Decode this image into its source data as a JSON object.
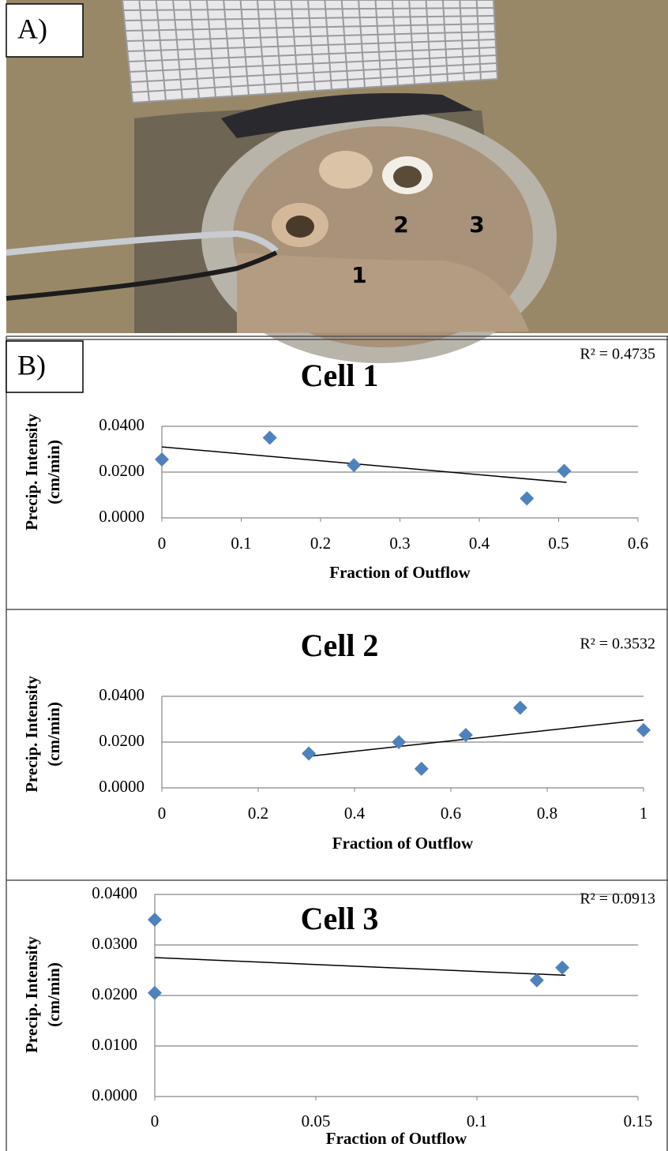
{
  "panel_a": {
    "label": "A)",
    "markers": [
      "1",
      "2",
      "3"
    ]
  },
  "panel_b": {
    "label": "B)"
  },
  "chart_data": [
    {
      "type": "scatter",
      "title": "Cell 1",
      "annotation": "R² = 0.4735",
      "xlabel": "Fraction of Outflow",
      "ylabel": [
        "Precip. Intensity",
        "(cm/min)"
      ],
      "series": [
        {
          "name": "Cell 1",
          "color": "#4f81bd",
          "x": [
            0,
            0.136,
            0.242,
            0.46,
            0.507
          ],
          "values": [
            0.0255,
            0.035,
            0.023,
            0.0085,
            0.0205
          ]
        }
      ],
      "trendline": {
        "x": [
          0,
          0.51
        ],
        "values": [
          0.031,
          0.0155
        ],
        "color": "#000000"
      },
      "xlim": [
        0,
        0.6
      ],
      "xticks": [
        0,
        0.1,
        0.2,
        0.3,
        0.4,
        0.5,
        0.6
      ],
      "ylim": [
        0,
        0.04
      ],
      "yticks": [
        {
          "value": 0,
          "label": "0.0000"
        },
        {
          "value": 0.02,
          "label": "0.0200"
        },
        {
          "value": 0.04,
          "label": "0.0400"
        }
      ],
      "grid": true
    },
    {
      "type": "scatter",
      "title": "Cell 2",
      "annotation": "R² = 0.3532",
      "xlabel": "Fraction of Outflow",
      "ylabel": [
        "Precip. Intensity",
        "(cm/min)"
      ],
      "series": [
        {
          "name": "Cell 2",
          "color": "#4f81bd",
          "x": [
            0.305,
            0.492,
            0.539,
            0.631,
            0.744,
            1
          ],
          "values": [
            0.015,
            0.02,
            0.0083,
            0.0231,
            0.035,
            0.0252
          ]
        }
      ],
      "trendline": {
        "x": [
          0.305,
          1
        ],
        "values": [
          0.0138,
          0.0297
        ],
        "color": "#000000"
      },
      "xlim": [
        0,
        1
      ],
      "xticks": [
        0,
        0.2,
        0.4,
        0.6,
        0.8,
        1
      ],
      "ylim": [
        0,
        0.04
      ],
      "yticks": [
        {
          "value": 0,
          "label": "0.0000"
        },
        {
          "value": 0.02,
          "label": "0.0200"
        },
        {
          "value": 0.04,
          "label": "0.0400"
        }
      ],
      "grid": true
    },
    {
      "type": "scatter",
      "title": "Cell 3",
      "annotation": "R² = 0.0913",
      "xlabel": "Fraction of Outflow",
      "ylabel": [
        "Precip. Intensity",
        "(cm/min)"
      ],
      "series": [
        {
          "name": "Cell 3",
          "color": "#4f81bd",
          "x": [
            0,
            0,
            0.1186,
            0.1265
          ],
          "values": [
            0.035,
            0.0205,
            0.023,
            0.0255
          ]
        }
      ],
      "trendline": {
        "x": [
          0,
          0.1275
        ],
        "values": [
          0.0275,
          0.024
        ],
        "color": "#000000"
      },
      "xlim": [
        0,
        0.15
      ],
      "xticks": [
        0,
        0.05,
        0.1,
        0.15
      ],
      "ylim": [
        0,
        0.04
      ],
      "yticks": [
        {
          "value": 0,
          "label": "0.0000"
        },
        {
          "value": 0.01,
          "label": "0.0100"
        },
        {
          "value": 0.02,
          "label": "0.0200"
        },
        {
          "value": 0.03,
          "label": "0.0300"
        },
        {
          "value": 0.04,
          "label": "0.0400"
        }
      ],
      "grid": true
    }
  ]
}
